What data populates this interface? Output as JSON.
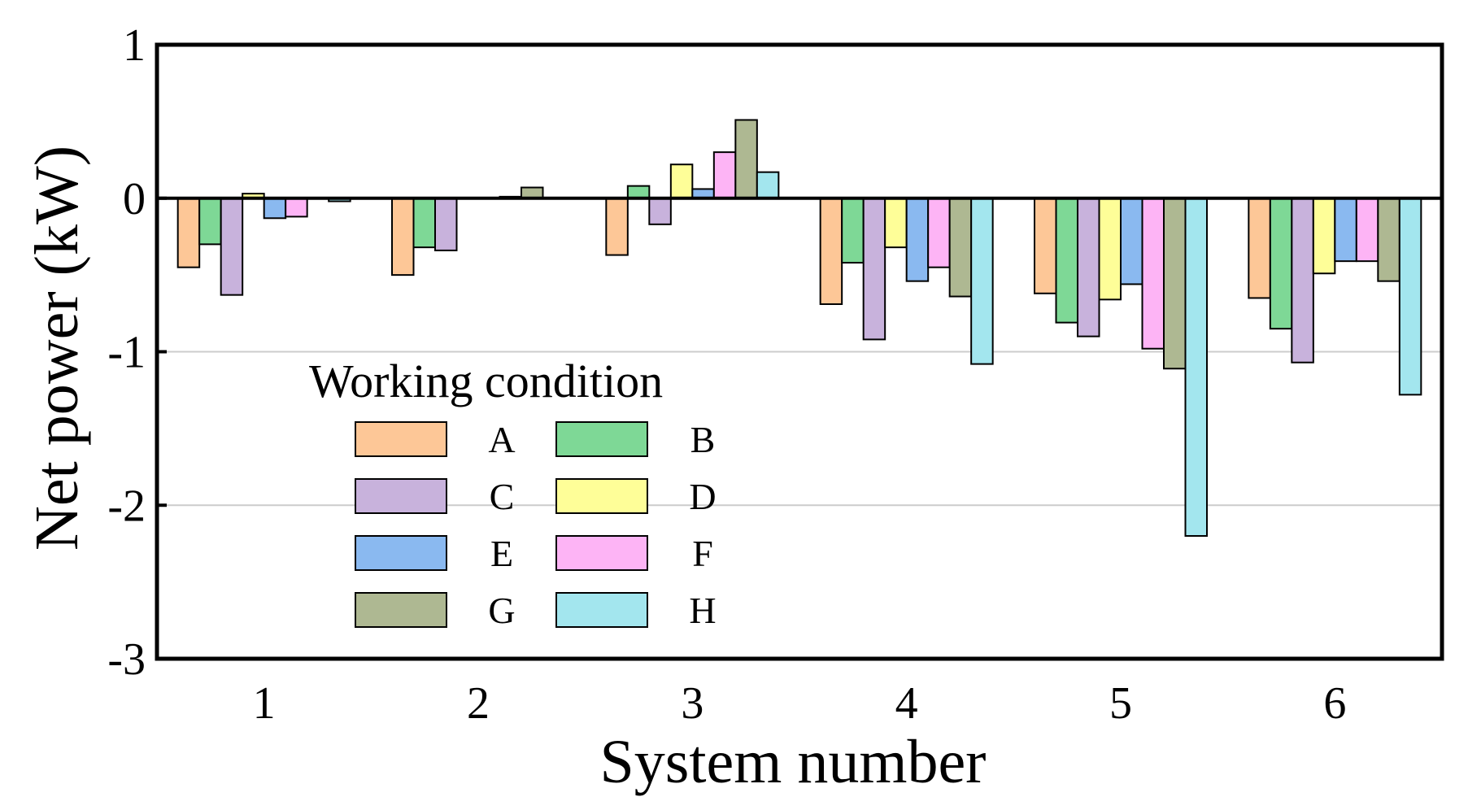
{
  "chart_data": {
    "type": "bar",
    "title": "",
    "xlabel": "System number",
    "ylabel": "Net power (kW)",
    "ylim": [
      -3,
      1
    ],
    "yticks": [
      "1",
      "0",
      "-1",
      "-2",
      "-3"
    ],
    "grid": true,
    "categories": [
      "1",
      "2",
      "3",
      "4",
      "5",
      "6"
    ],
    "legend": {
      "title": "Working condition",
      "placement": "lower-left"
    },
    "series": [
      {
        "name": "A",
        "color": "#FDC797",
        "values": [
          -0.45,
          -0.5,
          -0.37,
          -0.69,
          -0.62,
          -0.65
        ]
      },
      {
        "name": "B",
        "color": "#7ED896",
        "values": [
          -0.3,
          -0.32,
          0.08,
          -0.42,
          -0.81,
          -0.85
        ]
      },
      {
        "name": "C",
        "color": "#C8B2DC",
        "values": [
          -0.63,
          -0.34,
          -0.17,
          -0.92,
          -0.9,
          -1.07
        ]
      },
      {
        "name": "D",
        "color": "#FEFE98",
        "values": [
          0.03,
          0.0,
          0.22,
          -0.32,
          -0.66,
          -0.49
        ]
      },
      {
        "name": "E",
        "color": "#8AB9F0",
        "values": [
          -0.13,
          0.0,
          0.06,
          -0.54,
          -0.56,
          -0.41
        ]
      },
      {
        "name": "F",
        "color": "#FDB4F5",
        "values": [
          -0.12,
          0.01,
          0.3,
          -0.45,
          -0.98,
          -0.41
        ]
      },
      {
        "name": "G",
        "color": "#AEB892",
        "values": [
          0.0,
          0.07,
          0.51,
          -0.64,
          -1.11,
          -0.54
        ]
      },
      {
        "name": "H",
        "color": "#A3E6EE",
        "values": [
          -0.02,
          0.0,
          0.17,
          -1.08,
          -2.2,
          -1.28
        ]
      }
    ]
  }
}
